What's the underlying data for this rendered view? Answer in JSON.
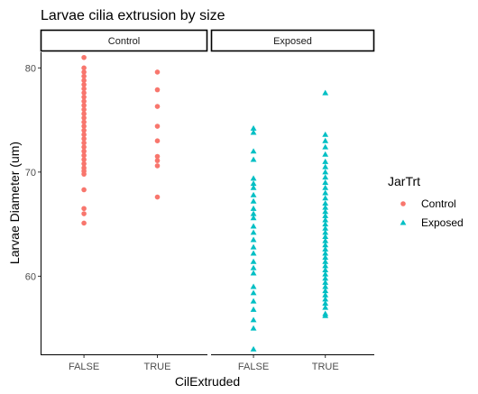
{
  "chart_data": {
    "type": "scatter",
    "title": "Larvae cilia extrusion by size",
    "xlabel": "CilExtruded",
    "ylabel": "Larvae Diameter (um)",
    "ylim": [
      52.5,
      81.5
    ],
    "yticks": [
      60,
      70,
      80
    ],
    "categories": [
      "FALSE",
      "TRUE"
    ],
    "grid": false,
    "legend": {
      "title": "JarTrt",
      "position": "right",
      "entries": [
        {
          "label": "Control",
          "color": "#F8766D",
          "shape": "circle"
        },
        {
          "label": "Exposed",
          "color": "#00BFC4",
          "shape": "triangle"
        }
      ]
    },
    "facets": [
      {
        "label": "Control",
        "series_name": "Control",
        "points": [
          {
            "x": "FALSE",
            "y": [
              81.0,
              80.0,
              79.6,
              79.2,
              78.8,
              78.4,
              78.0,
              77.6,
              77.2,
              76.8,
              76.4,
              76.0,
              75.6,
              75.2,
              74.8,
              74.4,
              74.0,
              73.6,
              73.2,
              72.8,
              72.4,
              72.0,
              71.6,
              71.2,
              70.8,
              70.4,
              70.1,
              69.8,
              68.3,
              66.5,
              66.0,
              65.1
            ]
          },
          {
            "x": "TRUE",
            "y": [
              79.6,
              77.9,
              76.3,
              74.4,
              73.0,
              71.5,
              71.1,
              70.6,
              67.6
            ]
          }
        ]
      },
      {
        "label": "Exposed",
        "series_name": "Exposed",
        "points": [
          {
            "x": "FALSE",
            "y": [
              74.2,
              73.8,
              72.0,
              71.2,
              69.4,
              68.9,
              68.5,
              67.8,
              67.2,
              66.5,
              66.0,
              65.6,
              64.8,
              64.2,
              63.5,
              62.8,
              62.2,
              61.4,
              60.8,
              60.3,
              59.0,
              58.4,
              57.6,
              56.8,
              55.8,
              55.0,
              53.0
            ]
          },
          {
            "x": "TRUE",
            "y": [
              77.6,
              73.6,
              73.0,
              72.4,
              71.7,
              71.0,
              70.5,
              70.0,
              69.5,
              69.0,
              68.5,
              68.0,
              67.5,
              67.0,
              66.6,
              66.2,
              65.8,
              65.4,
              65.0,
              64.6,
              64.2,
              63.8,
              63.4,
              63.0,
              62.6,
              62.2,
              61.8,
              61.4,
              61.0,
              60.6,
              60.2,
              59.8,
              59.4,
              59.0,
              58.6,
              58.2,
              57.8,
              57.4,
              57.0,
              56.4,
              56.2
            ]
          }
        ]
      }
    ]
  }
}
